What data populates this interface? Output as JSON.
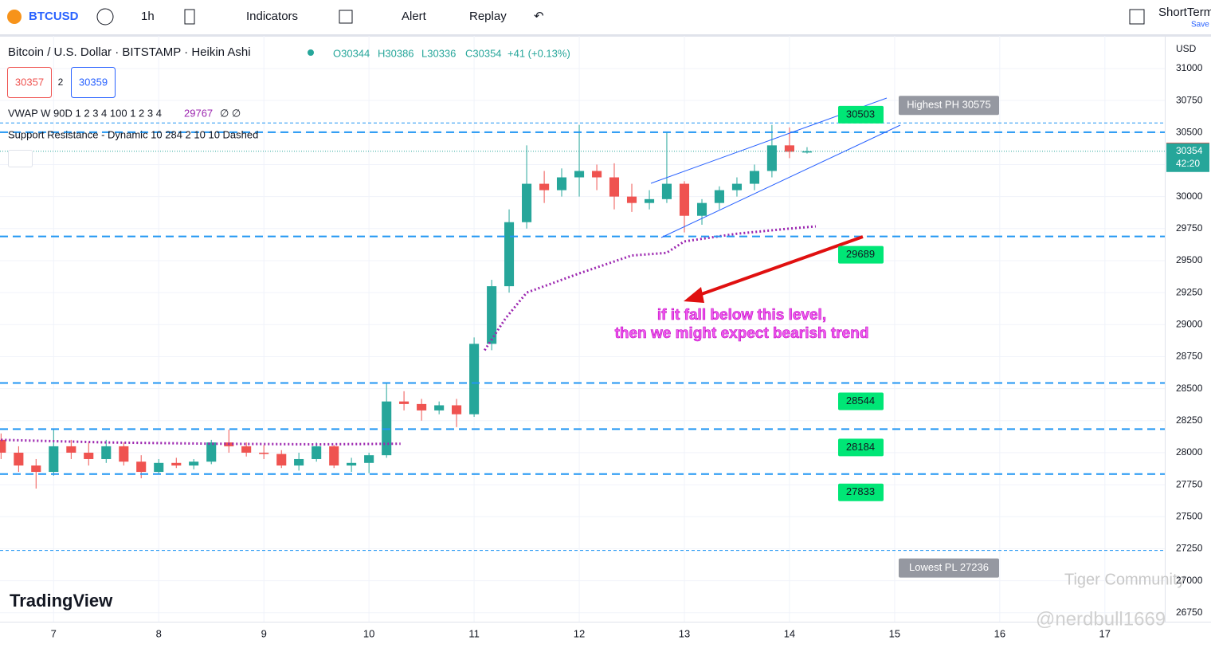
{
  "toolbar": {
    "symbol": "BTCUSD",
    "interval": "1h",
    "indicators": "Indicators",
    "alert": "Alert",
    "replay": "Replay",
    "layout": "ShortTerm",
    "save": "Save"
  },
  "legend": {
    "open": "O30344",
    "high": "H30386",
    "low": "L30336",
    "close": "C30354",
    "change": "+41 (+0.13%)",
    "bid": "30357",
    "spread": "2",
    "ask": "30359",
    "vwap_name": "VWAP W 90D 1 2 3 4 100 1 2 3 4",
    "vwap_value": "29767",
    "vwap_extra": "∅ ∅",
    "sr_name": "Support Resistance - Dynamic 10 284 2 10 10 Dashed"
  },
  "logo": "TradingView",
  "watermark": [
    "Tiger Community",
    "@nerdbull1669"
  ],
  "chart_data": {
    "type": "candlestick",
    "title": "Bitcoin / U.S. Dollar · BITSTAMP · Heikin Ashi",
    "x": [
      6.5,
      6.667,
      6.833,
      7.0,
      7.167,
      7.333,
      7.5,
      7.667,
      7.833,
      8.0,
      8.167,
      8.333,
      8.5,
      8.667,
      8.833,
      9.0,
      9.167,
      9.333,
      9.5,
      9.667,
      9.833,
      10.0,
      10.167,
      10.333,
      10.5,
      10.667,
      10.833,
      11.0,
      11.167,
      11.333,
      11.5,
      11.667,
      11.833,
      12.0,
      12.167,
      12.333,
      12.5,
      12.667,
      12.833,
      13.0,
      13.167,
      13.333,
      13.5,
      13.667,
      13.833,
      14.0,
      14.167
    ],
    "open": [
      28100,
      28000,
      27900,
      27850,
      28050,
      28000,
      27950,
      28050,
      27930,
      27850,
      27920,
      27900,
      27930,
      28080,
      28050,
      28000,
      27990,
      27900,
      27950,
      28050,
      27900,
      27920,
      27980,
      28400,
      28380,
      28330,
      28370,
      28300,
      28850,
      29300,
      29800,
      30100,
      30050,
      30150,
      30200,
      30150,
      30000,
      29950,
      29980,
      30100,
      29850,
      29950,
      30050,
      30100,
      30200,
      30400,
      30344
    ],
    "high": [
      28150,
      28050,
      27950,
      28180,
      28100,
      28080,
      28100,
      28080,
      27980,
      27950,
      27960,
      27950,
      28100,
      28180,
      28080,
      28060,
      28020,
      28000,
      28080,
      28060,
      27960,
      28000,
      28550,
      28480,
      28420,
      28400,
      28420,
      28900,
      29350,
      29900,
      30400,
      30200,
      30220,
      30560,
      30250,
      30260,
      30100,
      30050,
      30500,
      30120,
      29980,
      30080,
      30150,
      30250,
      30560,
      30540,
      30386
    ],
    "low": [
      27950,
      27850,
      27720,
      27820,
      27950,
      27900,
      27920,
      27900,
      27800,
      27830,
      27880,
      27870,
      27910,
      28000,
      27970,
      27950,
      27880,
      27860,
      27930,
      27880,
      27850,
      27840,
      27960,
      28330,
      28250,
      28300,
      28200,
      28280,
      28800,
      29250,
      29750,
      29950,
      30000,
      30000,
      30050,
      29900,
      29880,
      29900,
      29950,
      29720,
      29780,
      29900,
      30000,
      30050,
      30150,
      30300,
      30336
    ],
    "close": [
      28000,
      27900,
      27850,
      28050,
      28000,
      27950,
      28050,
      27930,
      27850,
      27920,
      27900,
      27930,
      28080,
      28050,
      28000,
      27990,
      27900,
      27950,
      28050,
      27900,
      27920,
      27980,
      28400,
      28380,
      28330,
      28370,
      28300,
      28850,
      29300,
      29800,
      30100,
      30050,
      30150,
      30200,
      30150,
      30000,
      29950,
      29980,
      30100,
      29850,
      29950,
      30050,
      30100,
      30200,
      30400,
      30350,
      30354
    ],
    "up_color": "#26a69a",
    "down_color": "#ef5350",
    "vwap": {
      "color": "#9c27b0",
      "x": [
        6.5,
        7.5,
        8.5,
        9.5,
        10.3,
        10.6,
        11.1,
        11.3,
        11.5,
        12.0,
        12.5,
        12.83,
        13.0,
        13.5,
        14.0,
        14.25
      ],
      "values": [
        28100,
        28080,
        28070,
        28065,
        28070,
        null,
        28800,
        29050,
        29250,
        29400,
        29540,
        29560,
        29650,
        29710,
        29750,
        29767
      ]
    },
    "levels": [
      30503,
      29689,
      28544,
      28184,
      27833
    ],
    "level_color": "#2196f3",
    "pivots": [
      {
        "value": 30575,
        "label": "Highest PH 30575"
      },
      {
        "value": 27236,
        "label": "Lowest PL 27236"
      }
    ],
    "ask_price": 30359,
    "last_price": 30354,
    "countdown": "42:20",
    "currency": "USD",
    "annotation": [
      "if it fall below this level,",
      "then we might expect bearish trend"
    ],
    "xlim": [
      6.49,
      17.57
    ],
    "xticks": [
      7,
      8,
      9,
      10,
      11,
      12,
      13,
      14,
      15,
      16,
      17
    ],
    "ylim": [
      26680,
      31255
    ],
    "yticks": [
      26750,
      27000,
      27250,
      27500,
      27750,
      28000,
      28250,
      28500,
      28750,
      29000,
      29250,
      29500,
      29750,
      30000,
      30250,
      30500,
      30750,
      31000
    ]
  }
}
